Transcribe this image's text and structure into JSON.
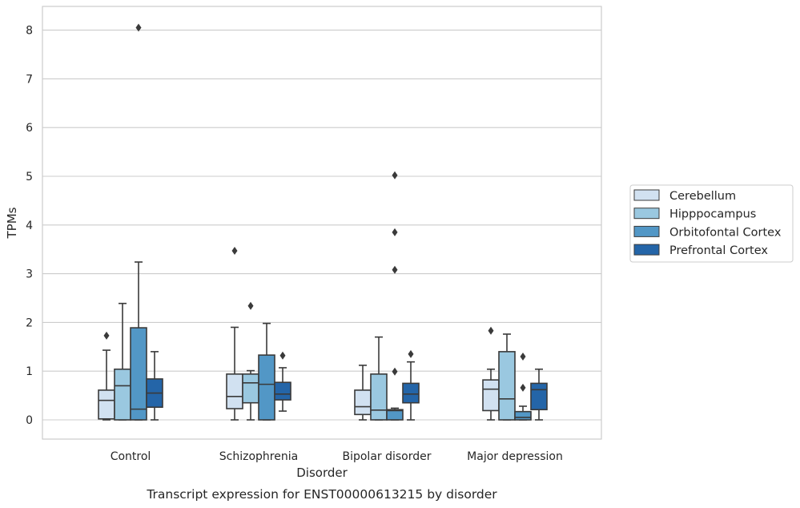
{
  "chart_data": {
    "type": "boxplot",
    "xlabel": "Disorder",
    "ylabel": "TPMs",
    "caption": "Transcript expression for ENST00000613215 by disorder",
    "ylim": [
      -0.4,
      8.5
    ],
    "yticks": [
      0,
      1,
      2,
      3,
      4,
      5,
      6,
      7,
      8
    ],
    "grid": true,
    "legend_position": "right",
    "categories": [
      "Control",
      "Schizophrenia",
      "Bipolar disorder",
      "Major depression"
    ],
    "series": [
      {
        "name": "Cerebellum",
        "color": "#d1e1f1",
        "boxes": [
          {
            "whislo": 0.0,
            "q1": 0.02,
            "med": 0.4,
            "q3": 0.61,
            "whishi": 1.43,
            "fliers": [
              1.73
            ]
          },
          {
            "whislo": 0.0,
            "q1": 0.23,
            "med": 0.48,
            "q3": 0.94,
            "whishi": 1.9,
            "fliers": [
              3.47
            ]
          },
          {
            "whislo": 0.0,
            "q1": 0.11,
            "med": 0.27,
            "q3": 0.61,
            "whishi": 1.12,
            "fliers": []
          },
          {
            "whislo": 0.0,
            "q1": 0.19,
            "med": 0.63,
            "q3": 0.82,
            "whishi": 1.04,
            "fliers": [
              1.83
            ]
          }
        ]
      },
      {
        "name": "Hipppocampus",
        "color": "#9ac8e0",
        "boxes": [
          {
            "whislo": 0.0,
            "q1": 0.0,
            "med": 0.7,
            "q3": 1.04,
            "whishi": 2.39,
            "fliers": []
          },
          {
            "whislo": 0.0,
            "q1": 0.35,
            "med": 0.76,
            "q3": 0.94,
            "whishi": 1.01,
            "fliers": [
              2.34
            ]
          },
          {
            "whislo": 0.0,
            "q1": 0.0,
            "med": 0.2,
            "q3": 0.94,
            "whishi": 1.7,
            "fliers": []
          },
          {
            "whislo": 0.0,
            "q1": 0.0,
            "med": 0.43,
            "q3": 1.4,
            "whishi": 1.76,
            "fliers": []
          }
        ]
      },
      {
        "name": "Orbitofontal Cortex",
        "color": "#5297c6",
        "boxes": [
          {
            "whislo": 0.0,
            "q1": 0.0,
            "med": 0.22,
            "q3": 1.89,
            "whishi": 3.24,
            "fliers": [
              8.05
            ]
          },
          {
            "whislo": 0.0,
            "q1": 0.0,
            "med": 0.73,
            "q3": 1.33,
            "whishi": 1.98,
            "fliers": []
          },
          {
            "whislo": 0.0,
            "q1": 0.0,
            "med": 0.19,
            "q3": 0.21,
            "whishi": 0.24,
            "fliers": [
              0.99,
              3.08,
              3.85,
              5.02
            ]
          },
          {
            "whislo": 0.0,
            "q1": 0.0,
            "med": 0.05,
            "q3": 0.17,
            "whishi": 0.28,
            "fliers": [
              0.66,
              1.3
            ]
          }
        ]
      },
      {
        "name": "Prefrontal Cortex",
        "color": "#2465a8",
        "boxes": [
          {
            "whislo": 0.0,
            "q1": 0.26,
            "med": 0.55,
            "q3": 0.84,
            "whishi": 1.4,
            "fliers": []
          },
          {
            "whislo": 0.18,
            "q1": 0.41,
            "med": 0.53,
            "q3": 0.77,
            "whishi": 1.07,
            "fliers": [
              1.32
            ]
          },
          {
            "whislo": 0.0,
            "q1": 0.35,
            "med": 0.53,
            "q3": 0.75,
            "whishi": 1.19,
            "fliers": [
              1.35
            ]
          },
          {
            "whislo": 0.0,
            "q1": 0.21,
            "med": 0.62,
            "q3": 0.75,
            "whishi": 1.04,
            "fliers": []
          }
        ]
      }
    ]
  }
}
